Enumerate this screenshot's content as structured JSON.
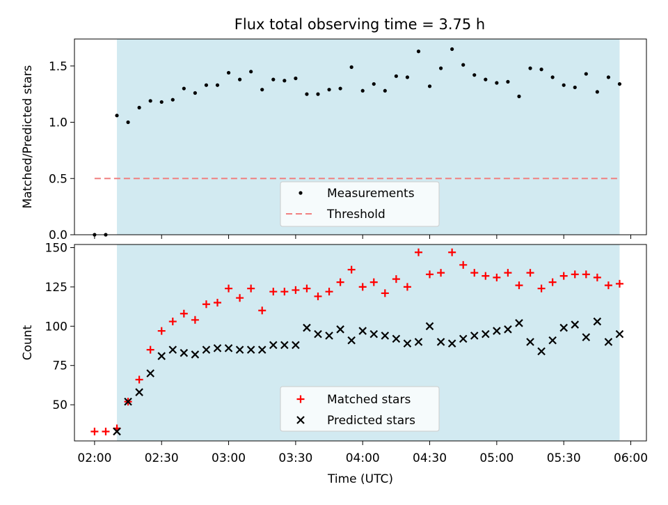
{
  "title": "Flux total observing time = 3.75 h",
  "colors": {
    "shade": "#add8e6",
    "threshold": "#f08080",
    "matched": "#ff0000",
    "predicted": "#000000",
    "measure": "#000000"
  },
  "chart_data": [
    {
      "type": "scatter",
      "panel": "top",
      "title": "Flux total observing time = 3.75 h",
      "xlabel": "",
      "ylabel": "Matched/Predicted stars",
      "ylim": [
        0,
        1.74
      ],
      "yticks": [
        0,
        0.5,
        1.0,
        1.5
      ],
      "ytick_labels": [
        "0.0",
        "0.5",
        "1.0",
        "1.5"
      ],
      "shaded_region": [
        "02:10",
        "05:55"
      ],
      "threshold": {
        "y": 0.5,
        "x_start": "02:00",
        "x_end": "05:55"
      },
      "legend": {
        "position": "lower-center",
        "entries": [
          "Measurements",
          "Threshold"
        ]
      },
      "series": [
        {
          "name": "Measurements",
          "style": "dot",
          "x": [
            "02:00",
            "02:05",
            "02:10",
            "02:15",
            "02:20",
            "02:25",
            "02:30",
            "02:35",
            "02:40",
            "02:45",
            "02:50",
            "02:55",
            "03:00",
            "03:05",
            "03:10",
            "03:15",
            "03:20",
            "03:25",
            "03:30",
            "03:35",
            "03:40",
            "03:45",
            "03:50",
            "03:55",
            "04:00",
            "04:05",
            "04:10",
            "04:15",
            "04:20",
            "04:25",
            "04:30",
            "04:35",
            "04:40",
            "04:45",
            "04:50",
            "04:55",
            "05:00",
            "05:05",
            "05:10",
            "05:15",
            "05:20",
            "05:25",
            "05:30",
            "05:35",
            "05:40",
            "05:45",
            "05:50",
            "05:55"
          ],
          "y": [
            0.0,
            0.0,
            1.06,
            1.0,
            1.13,
            1.19,
            1.18,
            1.2,
            1.3,
            1.26,
            1.33,
            1.33,
            1.44,
            1.38,
            1.45,
            1.29,
            1.38,
            1.37,
            1.39,
            1.25,
            1.25,
            1.29,
            1.3,
            1.49,
            1.28,
            1.34,
            1.28,
            1.41,
            1.4,
            1.63,
            1.32,
            1.48,
            1.65,
            1.51,
            1.42,
            1.38,
            1.35,
            1.36,
            1.23,
            1.48,
            1.47,
            1.4,
            1.33,
            1.31,
            1.43,
            1.27,
            1.4,
            1.34
          ]
        }
      ]
    },
    {
      "type": "scatter",
      "panel": "bottom",
      "xlabel": "Time (UTC)",
      "ylabel": "Count",
      "ylim": [
        27,
        152
      ],
      "yticks": [
        50,
        75,
        100,
        125,
        150
      ],
      "xlim": [
        "01:51",
        "06:07"
      ],
      "xticks": [
        "02:00",
        "02:30",
        "03:00",
        "03:30",
        "04:00",
        "04:30",
        "05:00",
        "05:30",
        "06:00"
      ],
      "shaded_region": [
        "02:10",
        "05:55"
      ],
      "legend": {
        "position": "lower-center",
        "entries": [
          "Matched stars",
          "Predicted stars"
        ]
      },
      "series": [
        {
          "name": "Matched stars",
          "style": "plus",
          "x": [
            "02:00",
            "02:05",
            "02:10",
            "02:15",
            "02:20",
            "02:25",
            "02:30",
            "02:35",
            "02:40",
            "02:45",
            "02:50",
            "02:55",
            "03:00",
            "03:05",
            "03:10",
            "03:15",
            "03:20",
            "03:25",
            "03:30",
            "03:35",
            "03:40",
            "03:45",
            "03:50",
            "03:55",
            "04:00",
            "04:05",
            "04:10",
            "04:15",
            "04:20",
            "04:25",
            "04:30",
            "04:35",
            "04:40",
            "04:45",
            "04:50",
            "04:55",
            "05:00",
            "05:05",
            "05:10",
            "05:15",
            "05:20",
            "05:25",
            "05:30",
            "05:35",
            "05:40",
            "05:45",
            "05:50",
            "05:55"
          ],
          "y": [
            33,
            33,
            35,
            52,
            66,
            85,
            97,
            103,
            108,
            104,
            114,
            115,
            124,
            118,
            124,
            110,
            122,
            122,
            123,
            124,
            119,
            122,
            128,
            136,
            125,
            128,
            121,
            130,
            125,
            147,
            133,
            134,
            147,
            139,
            134,
            132,
            131,
            134,
            126,
            134,
            124,
            128,
            132,
            133,
            133,
            131,
            126,
            127
          ]
        },
        {
          "name": "Predicted stars",
          "style": "x",
          "x": [
            "02:10",
            "02:15",
            "02:20",
            "02:25",
            "02:30",
            "02:35",
            "02:40",
            "02:45",
            "02:50",
            "02:55",
            "03:00",
            "03:05",
            "03:10",
            "03:15",
            "03:20",
            "03:25",
            "03:30",
            "03:35",
            "03:40",
            "03:45",
            "03:50",
            "03:55",
            "04:00",
            "04:05",
            "04:10",
            "04:15",
            "04:20",
            "04:25",
            "04:30",
            "04:35",
            "04:40",
            "04:45",
            "04:50",
            "04:55",
            "05:00",
            "05:05",
            "05:10",
            "05:15",
            "05:20",
            "05:25",
            "05:30",
            "05:35",
            "05:40",
            "05:45",
            "05:50",
            "05:55"
          ],
          "y": [
            33,
            52,
            58,
            70,
            81,
            85,
            83,
            82,
            85,
            86,
            86,
            85,
            85,
            85,
            88,
            88,
            88,
            99,
            95,
            94,
            98,
            91,
            97,
            95,
            94,
            92,
            89,
            90,
            100,
            90,
            89,
            92,
            94,
            95,
            97,
            98,
            102,
            90,
            84,
            91,
            99,
            101,
            93,
            103,
            90,
            95
          ]
        }
      ]
    }
  ]
}
